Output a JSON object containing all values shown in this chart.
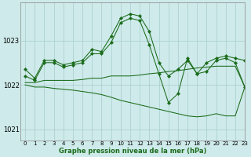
{
  "title": "Graphe pression niveau de la mer (hPa)",
  "background_color": "#ceeaea",
  "grid_color": "#a8cccc",
  "line_color": "#1a6b1a",
  "xlim": [
    -0.5,
    23
  ],
  "ylim": [
    1020.75,
    1023.85
  ],
  "yticks": [
    1021,
    1022,
    1023
  ],
  "xticks": [
    0,
    1,
    2,
    3,
    4,
    5,
    6,
    7,
    8,
    9,
    10,
    11,
    12,
    13,
    14,
    15,
    16,
    17,
    18,
    19,
    20,
    21,
    22,
    23
  ],
  "series1_x": [
    0,
    1,
    2,
    3,
    4,
    5,
    6,
    7,
    8,
    9,
    10,
    11,
    12,
    13,
    14,
    15,
    16,
    17,
    18,
    19,
    20,
    21,
    22,
    23
  ],
  "series1_y": [
    1022.35,
    1022.15,
    1022.55,
    1022.55,
    1022.45,
    1022.5,
    1022.55,
    1022.8,
    1022.75,
    1023.1,
    1023.5,
    1023.6,
    1023.55,
    1023.2,
    1022.5,
    1022.2,
    1022.35,
    1022.55,
    1022.25,
    1022.5,
    1022.6,
    1022.65,
    1022.6,
    1022.55
  ],
  "series2_x": [
    0,
    1,
    2,
    3,
    4,
    5,
    6,
    7,
    8,
    9,
    10,
    11,
    12,
    13,
    14,
    15,
    16,
    17,
    18,
    19,
    20,
    21,
    22,
    23
  ],
  "series2_y": [
    1022.2,
    1022.1,
    1022.5,
    1022.5,
    1022.4,
    1022.45,
    1022.5,
    1022.7,
    1022.7,
    1022.95,
    1023.4,
    1023.5,
    1023.45,
    1022.9,
    1022.25,
    1021.6,
    1021.8,
    1022.6,
    1022.25,
    1022.3,
    1022.55,
    1022.6,
    1022.5,
    1021.95
  ],
  "series3_upper": [
    1022.05,
    1022.05,
    1022.1,
    1022.1,
    1022.1,
    1022.1,
    1022.12,
    1022.15,
    1022.15,
    1022.2,
    1022.2,
    1022.2,
    1022.22,
    1022.25,
    1022.27,
    1022.3,
    1022.32,
    1022.35,
    1022.38,
    1022.4,
    1022.42,
    1022.42,
    1022.42,
    1021.95
  ],
  "series3_lower": [
    1022.0,
    1021.95,
    1021.95,
    1021.92,
    1021.9,
    1021.88,
    1021.85,
    1021.82,
    1021.78,
    1021.72,
    1021.65,
    1021.6,
    1021.55,
    1021.5,
    1021.45,
    1021.4,
    1021.35,
    1021.3,
    1021.28,
    1021.3,
    1021.35,
    1021.3,
    1021.3,
    1021.95
  ]
}
